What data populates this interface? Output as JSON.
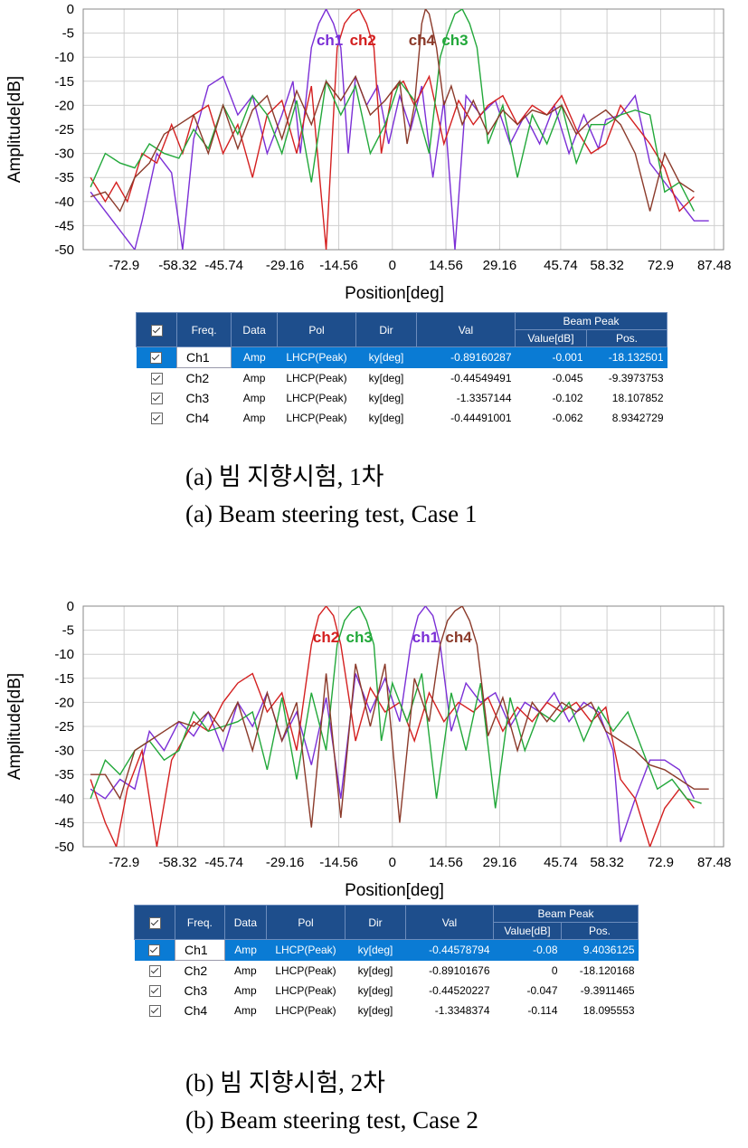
{
  "chart_data": [
    {
      "type": "line",
      "xlabel": "Position[deg]",
      "ylabel": "Amplitude[dB]",
      "xlim": [
        -84,
        90
      ],
      "ylim": [
        -50,
        0
      ],
      "x_ticks": [
        "-72.9",
        "-58.32",
        "-45.74",
        "-29.16",
        "-14.56",
        "0",
        "14.56",
        "29.16",
        "45.74",
        "58.32",
        "72.9",
        "87.48"
      ],
      "y_ticks": [
        "0",
        "-5",
        "-10",
        "-15",
        "-20",
        "-25",
        "-30",
        "-35",
        "-40",
        "-45",
        "-50"
      ],
      "grid": true,
      "peak_labels": [
        {
          "text": "ch1",
          "color": "#7b2fd6",
          "x": -17
        },
        {
          "text": "ch2",
          "color": "#d42020",
          "x": -8
        },
        {
          "text": "ch4",
          "color": "#8b3a2a",
          "x": 8
        },
        {
          "text": "ch3",
          "color": "#22a83a",
          "x": 17
        }
      ],
      "series": [
        {
          "name": "ch1",
          "color": "#7b2fd6",
          "peak": -18.1,
          "sidelobe": -20,
          "x": [
            -82,
            -78,
            -74,
            -70,
            -68,
            -64,
            -60,
            -57,
            -54,
            -50,
            -46,
            -42,
            -38,
            -34,
            -30,
            -27,
            -25,
            -22,
            -20,
            -18,
            -16,
            -14,
            -12,
            -10,
            -7,
            -4,
            -1,
            2,
            5,
            8,
            11,
            14,
            17,
            20,
            24,
            28,
            32,
            36,
            40,
            44,
            48,
            52,
            56,
            58,
            62,
            66,
            70,
            74,
            78,
            82,
            86
          ],
          "y": [
            -38,
            -42,
            -46,
            -50,
            -44,
            -30,
            -34,
            -50,
            -27,
            -16,
            -14,
            -22,
            -18,
            -30,
            -22,
            -15,
            -30,
            -8,
            -3,
            0,
            -3,
            -8,
            -30,
            -14,
            -20,
            -16,
            -28,
            -18,
            -25,
            -16,
            -35,
            -19,
            -50,
            -18,
            -22,
            -19,
            -28,
            -22,
            -28,
            -20,
            -30,
            -22,
            -29,
            -23,
            -22,
            -18,
            -32,
            -36,
            -40,
            -44,
            -44
          ]
        },
        {
          "name": "ch2",
          "color": "#d42020",
          "peak": -9.4,
          "sidelobe": -20,
          "x": [
            -82,
            -78,
            -75,
            -72,
            -68,
            -64,
            -60,
            -57,
            -54,
            -50,
            -46,
            -42,
            -38,
            -34,
            -30,
            -26,
            -22,
            -18,
            -15,
            -13,
            -11,
            -9,
            -7,
            -5,
            -3,
            0,
            3,
            6,
            10,
            14,
            18,
            22,
            26,
            30,
            34,
            38,
            42,
            46,
            50,
            54,
            58,
            62,
            66,
            70,
            74,
            78,
            82
          ],
          "y": [
            -35,
            -40,
            -36,
            -40,
            -30,
            -32,
            -24,
            -30,
            -22,
            -20,
            -30,
            -24,
            -35,
            -22,
            -19,
            -30,
            -16,
            -50,
            -8,
            -3,
            -1,
            0,
            -3,
            -8,
            -30,
            -17,
            -15,
            -20,
            -14,
            -28,
            -19,
            -24,
            -20,
            -18,
            -24,
            -20,
            -22,
            -18,
            -25,
            -30,
            -28,
            -20,
            -24,
            -28,
            -33,
            -42,
            -39
          ]
        },
        {
          "name": "ch3",
          "color": "#22a83a",
          "peak": 18.1,
          "sidelobe": -20,
          "x": [
            -82,
            -78,
            -74,
            -70,
            -66,
            -62,
            -58,
            -54,
            -50,
            -46,
            -42,
            -38,
            -34,
            -30,
            -26,
            -22,
            -18,
            -14,
            -10,
            -6,
            -2,
            2,
            6,
            10,
            13,
            15,
            17,
            19,
            21,
            23,
            26,
            30,
            34,
            38,
            42,
            46,
            50,
            54,
            58,
            62,
            66,
            70,
            74,
            78,
            82
          ],
          "y": [
            -37,
            -30,
            -32,
            -33,
            -28,
            -30,
            -31,
            -25,
            -29,
            -20,
            -26,
            -18,
            -22,
            -30,
            -19,
            -36,
            -15,
            -22,
            -16,
            -30,
            -24,
            -15,
            -19,
            -30,
            -10,
            -5,
            -1,
            0,
            -3,
            -8,
            -28,
            -20,
            -35,
            -22,
            -28,
            -20,
            -32,
            -24,
            -24,
            -22,
            -21,
            -22,
            -38,
            -36,
            -42
          ]
        },
        {
          "name": "ch4",
          "color": "#8b3a2a",
          "peak": 8.9,
          "sidelobe": -20,
          "x": [
            -82,
            -78,
            -74,
            -70,
            -66,
            -62,
            -58,
            -54,
            -50,
            -46,
            -42,
            -38,
            -34,
            -30,
            -26,
            -22,
            -18,
            -14,
            -10,
            -6,
            -2,
            2,
            4,
            6,
            8,
            9,
            10,
            12,
            14,
            16,
            19,
            22,
            26,
            30,
            34,
            38,
            42,
            46,
            50,
            54,
            58,
            62,
            66,
            70,
            74,
            78,
            82
          ],
          "y": [
            -39,
            -38,
            -42,
            -35,
            -32,
            -26,
            -24,
            -22,
            -30,
            -20,
            -29,
            -21,
            -18,
            -27,
            -17,
            -24,
            -15,
            -19,
            -14,
            -22,
            -19,
            -15,
            -28,
            -20,
            -3,
            0,
            -1,
            -8,
            -20,
            -16,
            -24,
            -19,
            -26,
            -21,
            -24,
            -21,
            -22,
            -20,
            -26,
            -23,
            -21,
            -24,
            -30,
            -42,
            -30,
            -36,
            -38
          ]
        }
      ]
    },
    {
      "type": "line",
      "xlabel": "Position[deg]",
      "ylabel": "Amplitude[dB]",
      "xlim": [
        -84,
        90
      ],
      "ylim": [
        -50,
        0
      ],
      "x_ticks": [
        "-72.9",
        "-58.32",
        "-45.74",
        "-29.16",
        "-14.56",
        "0",
        "14.56",
        "29.16",
        "45.74",
        "58.32",
        "72.9",
        "87.48"
      ],
      "y_ticks": [
        "0",
        "-5",
        "-10",
        "-15",
        "-20",
        "-25",
        "-30",
        "-35",
        "-40",
        "-45",
        "-50"
      ],
      "grid": true,
      "peak_labels": [
        {
          "text": "ch2",
          "color": "#d42020",
          "x": -18
        },
        {
          "text": "ch3",
          "color": "#22a83a",
          "x": -9
        },
        {
          "text": "ch1",
          "color": "#7b2fd6",
          "x": 9
        },
        {
          "text": "ch4",
          "color": "#8b3a2a",
          "x": 18
        }
      ],
      "series": [
        {
          "name": "ch1",
          "color": "#7b2fd6",
          "x": [
            -82,
            -78,
            -74,
            -70,
            -66,
            -62,
            -58,
            -54,
            -50,
            -46,
            -42,
            -38,
            -34,
            -30,
            -26,
            -22,
            -18,
            -14,
            -10,
            -6,
            -2,
            2,
            5,
            7,
            9,
            11,
            13,
            16,
            20,
            24,
            28,
            32,
            36,
            40,
            44,
            48,
            52,
            56,
            60,
            62,
            66,
            70,
            74,
            78,
            82
          ],
          "y": [
            -38,
            -40,
            -36,
            -38,
            -26,
            -30,
            -24,
            -27,
            -22,
            -30,
            -20,
            -25,
            -18,
            -28,
            -22,
            -33,
            -19,
            -40,
            -14,
            -22,
            -15,
            -24,
            -8,
            -2,
            0,
            -2,
            -8,
            -26,
            -16,
            -20,
            -18,
            -25,
            -20,
            -22,
            -18,
            -24,
            -20,
            -22,
            -30,
            -49,
            -40,
            -32,
            -32,
            -34,
            -40
          ]
        },
        {
          "name": "ch2",
          "color": "#d42020",
          "x": [
            -82,
            -78,
            -75,
            -72,
            -68,
            -64,
            -60,
            -57,
            -54,
            -50,
            -46,
            -42,
            -38,
            -34,
            -30,
            -26,
            -22,
            -20,
            -18,
            -16,
            -14,
            -10,
            -6,
            -2,
            2,
            6,
            10,
            14,
            18,
            22,
            26,
            30,
            34,
            38,
            42,
            46,
            50,
            54,
            58,
            62,
            66,
            70,
            74,
            78,
            82
          ],
          "y": [
            -36,
            -45,
            -50,
            -38,
            -30,
            -50,
            -32,
            -28,
            -24,
            -26,
            -20,
            -16,
            -14,
            -22,
            -18,
            -30,
            -8,
            -2,
            0,
            -2,
            -8,
            -28,
            -17,
            -22,
            -20,
            -28,
            -18,
            -24,
            -20,
            -22,
            -19,
            -26,
            -21,
            -24,
            -20,
            -22,
            -20,
            -24,
            -21,
            -36,
            -40,
            -50,
            -42,
            -38,
            -42
          ]
        },
        {
          "name": "ch3",
          "color": "#22a83a",
          "x": [
            -82,
            -78,
            -74,
            -70,
            -66,
            -62,
            -58,
            -54,
            -50,
            -46,
            -42,
            -38,
            -34,
            -30,
            -26,
            -22,
            -18,
            -15,
            -13,
            -11,
            -9,
            -7,
            -5,
            -3,
            0,
            4,
            8,
            12,
            16,
            20,
            24,
            28,
            32,
            36,
            40,
            44,
            48,
            52,
            56,
            60,
            64,
            68,
            72,
            76,
            80,
            84
          ],
          "y": [
            -40,
            -32,
            -35,
            -30,
            -28,
            -32,
            -30,
            -22,
            -26,
            -25,
            -24,
            -22,
            -34,
            -19,
            -36,
            -18,
            -30,
            -8,
            -3,
            -1,
            0,
            -3,
            -8,
            -28,
            -16,
            -24,
            -14,
            -40,
            -18,
            -30,
            -16,
            -42,
            -19,
            -30,
            -22,
            -24,
            -20,
            -28,
            -21,
            -26,
            -22,
            -30,
            -38,
            -36,
            -40,
            -41
          ]
        },
        {
          "name": "ch4",
          "color": "#8b3a2a",
          "x": [
            -82,
            -78,
            -74,
            -70,
            -66,
            -62,
            -58,
            -54,
            -50,
            -46,
            -42,
            -38,
            -34,
            -30,
            -26,
            -22,
            -18,
            -14,
            -10,
            -6,
            -2,
            2,
            6,
            10,
            13,
            15,
            17,
            19,
            21,
            23,
            26,
            30,
            34,
            38,
            42,
            46,
            50,
            54,
            58,
            62,
            66,
            70,
            74,
            78,
            82,
            86
          ],
          "y": [
            -35,
            -35,
            -40,
            -30,
            -28,
            -26,
            -24,
            -25,
            -22,
            -26,
            -20,
            -30,
            -18,
            -28,
            -20,
            -46,
            -14,
            -44,
            -12,
            -25,
            -12,
            -45,
            -15,
            -24,
            -8,
            -3,
            -1,
            0,
            -3,
            -8,
            -27,
            -19,
            -30,
            -20,
            -24,
            -20,
            -22,
            -20,
            -26,
            -28,
            -30,
            -33,
            -34,
            -36,
            -38,
            -38
          ]
        }
      ]
    }
  ],
  "tables": [
    {
      "headers": {
        "freq": "Freq.",
        "data": "Data",
        "pol": "Pol",
        "dir": "Dir",
        "val": "Val",
        "beam_peak": "Beam Peak",
        "value_db": "Value[dB]",
        "pos": "Pos."
      },
      "rows": [
        {
          "freq": "Ch1",
          "data": "Amp",
          "pol": "LHCP(Peak)",
          "dir": "ky[deg]",
          "val": "-0.89160287",
          "value_db": "-0.001",
          "pos": "-18.132501"
        },
        {
          "freq": "Ch2",
          "data": "Amp",
          "pol": "LHCP(Peak)",
          "dir": "ky[deg]",
          "val": "-0.44549491",
          "value_db": "-0.045",
          "pos": "-9.3973753"
        },
        {
          "freq": "Ch3",
          "data": "Amp",
          "pol": "LHCP(Peak)",
          "dir": "ky[deg]",
          "val": "-1.3357144",
          "value_db": "-0.102",
          "pos": "18.107852"
        },
        {
          "freq": "Ch4",
          "data": "Amp",
          "pol": "LHCP(Peak)",
          "dir": "ky[deg]",
          "val": "-0.44491001",
          "value_db": "-0.062",
          "pos": "8.9342729"
        }
      ]
    },
    {
      "headers": {
        "freq": "Freq.",
        "data": "Data",
        "pol": "Pol",
        "dir": "Dir",
        "val": "Val",
        "beam_peak": "Beam Peak",
        "value_db": "Value[dB]",
        "pos": "Pos."
      },
      "rows": [
        {
          "freq": "Ch1",
          "data": "Amp",
          "pol": "LHCP(Peak)",
          "dir": "ky[deg]",
          "val": "-0.44578794",
          "value_db": "-0.08",
          "pos": "9.4036125"
        },
        {
          "freq": "Ch2",
          "data": "Amp",
          "pol": "LHCP(Peak)",
          "dir": "ky[deg]",
          "val": "-0.89101676",
          "value_db": "0",
          "pos": "-18.120168"
        },
        {
          "freq": "Ch3",
          "data": "Amp",
          "pol": "LHCP(Peak)",
          "dir": "ky[deg]",
          "val": "-0.44520227",
          "value_db": "-0.047",
          "pos": "-9.3911465"
        },
        {
          "freq": "Ch4",
          "data": "Amp",
          "pol": "LHCP(Peak)",
          "dir": "ky[deg]",
          "val": "-1.3348374",
          "value_db": "-0.114",
          "pos": "18.095553"
        }
      ]
    }
  ],
  "captions": {
    "a_kr": "(a)  빔  지향시험, 1차",
    "a_en": "(a)  Beam  steering  test,  Case  1",
    "b_kr": "(b)  빔  지향시험, 2차",
    "b_en": "(b)  Beam  steering  test,  Case  2"
  }
}
